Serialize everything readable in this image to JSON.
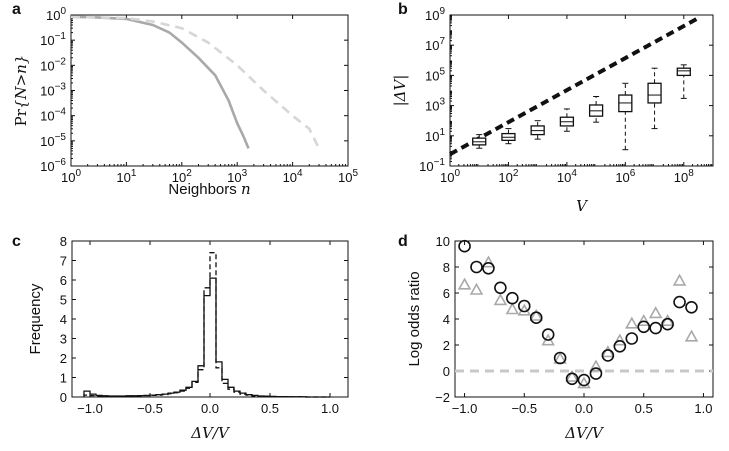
{
  "chart_data": [
    {
      "panel": "a",
      "type": "line",
      "xlabel": "Neighbors n",
      "ylabel": "Pr{N>n}",
      "x_scale": "log",
      "y_scale": "log",
      "xlim": [
        1,
        100000
      ],
      "ylim": [
        1e-06,
        1
      ],
      "x_ticks": [
        1,
        10,
        100,
        1000,
        10000,
        100000
      ],
      "x_tick_labels": [
        "10^0",
        "10^1",
        "10^2",
        "10^3",
        "10^4",
        "10^5"
      ],
      "y_ticks": [
        1e-06,
        1e-05,
        0.0001,
        0.001,
        0.01,
        0.1,
        1
      ],
      "y_tick_labels": [
        "10^-6",
        "10^-5",
        "10^-4",
        "10^-3",
        "10^-2",
        "10^-1",
        "10^0"
      ],
      "series": [
        {
          "style": "solid",
          "color": "#a9a9a9",
          "x": [
            1,
            3,
            10,
            30,
            60,
            100,
            200,
            400,
            700,
            1000,
            1300,
            1600
          ],
          "y": [
            0.85,
            0.8,
            0.7,
            0.4,
            0.2,
            0.08,
            0.02,
            0.004,
            0.0004,
            5e-05,
            1.5e-05,
            5e-06
          ]
        },
        {
          "style": "dashed",
          "color": "#d6d6d6",
          "x": [
            1,
            10,
            30,
            100,
            300,
            1000,
            3000,
            10000,
            20000,
            30000
          ],
          "y": [
            0.85,
            0.75,
            0.55,
            0.3,
            0.08,
            0.01,
            0.001,
            0.0001,
            3e-05,
            5e-06
          ]
        }
      ]
    },
    {
      "panel": "b",
      "type": "box",
      "xlabel": "V",
      "ylabel": "|ΔV|",
      "x_scale": "log",
      "y_scale": "log",
      "xlim": [
        1,
        1000000000
      ],
      "ylim": [
        0.1,
        1000000000
      ],
      "x_ticks": [
        1,
        100,
        10000,
        1000000,
        100000000
      ],
      "x_tick_labels": [
        "10^0",
        "10^2",
        "10^4",
        "10^6",
        "10^8"
      ],
      "y_ticks": [
        0.1,
        10,
        1000,
        100000,
        10000000,
        1000000000
      ],
      "y_tick_labels": [
        "10^-1",
        "10^1",
        "10^3",
        "10^5",
        "10^7",
        "10^9"
      ],
      "reference_line": {
        "style": "dashed",
        "x": [
          1,
          300000000
        ],
        "y": [
          0.6,
          600000000
        ]
      },
      "boxes": [
        {
          "x": 10,
          "whisker_low": 1.5,
          "q1": 2.5,
          "median": 4,
          "q3": 7,
          "whisker_high": 12
        },
        {
          "x": 100,
          "whisker_low": 3,
          "q1": 5,
          "median": 8,
          "q3": 14,
          "whisker_high": 30
        },
        {
          "x": 1000,
          "whisker_low": 6,
          "q1": 12,
          "median": 22,
          "q3": 45,
          "whisker_high": 100
        },
        {
          "x": 10000,
          "whisker_low": 20,
          "q1": 45,
          "median": 85,
          "q3": 170,
          "whisker_high": 600
        },
        {
          "x": 100000,
          "whisker_low": 80,
          "q1": 200,
          "median": 450,
          "q3": 1100,
          "whisker_high": 4000
        },
        {
          "x": 1000000,
          "whisker_low": 1.2,
          "q1": 400,
          "median": 1500,
          "q3": 5000,
          "whisker_high": 30000
        },
        {
          "x": 10000000,
          "whisker_low": 30,
          "q1": 1500,
          "median": 5000,
          "q3": 30000,
          "whisker_high": 300000
        },
        {
          "x": 100000000,
          "whisker_low": 3000,
          "q1": 100000,
          "median": 200000,
          "q3": 300000,
          "whisker_high": 500000
        }
      ]
    },
    {
      "panel": "c",
      "type": "histogram",
      "xlabel": "ΔV/V",
      "ylabel": "Frequency",
      "xlim": [
        -1.15,
        1.15
      ],
      "ylim": [
        0,
        8
      ],
      "x_ticks": [
        -1.0,
        -0.5,
        0.0,
        0.5,
        1.0
      ],
      "x_tick_labels": [
        "-1.0",
        "-0.5",
        "0.0",
        "0.5",
        "1.0"
      ],
      "y_ticks": [
        0,
        1,
        2,
        3,
        4,
        5,
        6,
        7,
        8
      ],
      "y_tick_labels": [
        "0",
        "1",
        "2",
        "3",
        "4",
        "5",
        "6",
        "7",
        "8"
      ],
      "bin_edges": [
        -1.05,
        -1.0,
        -0.95,
        -0.9,
        -0.85,
        -0.8,
        -0.75,
        -0.7,
        -0.65,
        -0.6,
        -0.55,
        -0.5,
        -0.45,
        -0.4,
        -0.35,
        -0.3,
        -0.25,
        -0.2,
        -0.15,
        -0.1,
        -0.05,
        0.0,
        0.05,
        0.1,
        0.15,
        0.2,
        0.25,
        0.3,
        0.35,
        0.4,
        0.45,
        0.5,
        0.55,
        0.6,
        0.65,
        0.7,
        0.75,
        0.8,
        0.85,
        0.9,
        0.95,
        1.0
      ],
      "series": [
        {
          "style": "solid",
          "values": [
            0.3,
            0.15,
            0.08,
            0.06,
            0.05,
            0.05,
            0.05,
            0.06,
            0.06,
            0.07,
            0.08,
            0.1,
            0.12,
            0.15,
            0.2,
            0.25,
            0.35,
            0.5,
            0.8,
            1.6,
            5.2,
            6.1,
            1.8,
            0.9,
            0.5,
            0.3,
            0.2,
            0.12,
            0.08,
            0.05,
            0.04,
            0.03,
            0.02,
            0.02,
            0.01,
            0.01,
            0.01,
            0.0,
            0.0,
            0.0,
            0.0
          ]
        },
        {
          "style": "dashed",
          "values": [
            0.1,
            0.07,
            0.05,
            0.05,
            0.04,
            0.04,
            0.04,
            0.05,
            0.05,
            0.06,
            0.07,
            0.08,
            0.1,
            0.13,
            0.17,
            0.22,
            0.3,
            0.45,
            0.75,
            1.4,
            5.6,
            7.4,
            1.5,
            0.7,
            0.4,
            0.25,
            0.15,
            0.1,
            0.06,
            0.04,
            0.03,
            0.02,
            0.02,
            0.01,
            0.01,
            0.01,
            0.01,
            0.0,
            0.0,
            0.0,
            0.0
          ]
        }
      ]
    },
    {
      "panel": "d",
      "type": "scatter",
      "xlabel": "ΔV/V",
      "ylabel": "Log odds ratio",
      "xlim": [
        -1.08,
        1.08
      ],
      "ylim": [
        -2,
        10
      ],
      "x_ticks": [
        -1.0,
        -0.5,
        0.0,
        0.5,
        1.0
      ],
      "x_tick_labels": [
        "-1.0",
        "-0.5",
        "0.0",
        "0.5",
        "1.0"
      ],
      "y_ticks": [
        -2,
        0,
        2,
        4,
        6,
        8,
        10
      ],
      "y_tick_labels": [
        "-2",
        "0",
        "2",
        "4",
        "6",
        "8",
        "10"
      ],
      "reference_line": {
        "style": "dashed",
        "color": "#c8c8c8",
        "y": 0
      },
      "series": [
        {
          "marker": "circle",
          "color": "#111111",
          "x": [
            -1.0,
            -0.9,
            -0.8,
            -0.7,
            -0.6,
            -0.5,
            -0.4,
            -0.3,
            -0.2,
            -0.1,
            0.0,
            0.1,
            0.2,
            0.3,
            0.4,
            0.5,
            0.6,
            0.7,
            0.8,
            0.9
          ],
          "y": [
            9.6,
            8.0,
            7.9,
            6.4,
            5.6,
            5.0,
            4.1,
            2.8,
            1.0,
            -0.6,
            -0.7,
            -0.2,
            1.2,
            1.9,
            2.5,
            3.4,
            3.3,
            3.6,
            5.3,
            4.9
          ]
        },
        {
          "marker": "triangle",
          "color": "#a9a9a9",
          "x": [
            -1.0,
            -0.9,
            -0.8,
            -0.7,
            -0.6,
            -0.5,
            -0.4,
            -0.3,
            -0.2,
            -0.1,
            0.0,
            0.1,
            0.2,
            0.3,
            0.4,
            0.5,
            0.6,
            0.7,
            0.8,
            0.9
          ],
          "y": [
            6.6,
            6.2,
            8.3,
            5.4,
            4.7,
            4.6,
            4.2,
            2.3,
            0.9,
            -0.5,
            -1.0,
            0.3,
            1.4,
            2.3,
            3.6,
            3.8,
            4.4,
            3.8,
            6.9,
            2.6
          ]
        }
      ]
    }
  ]
}
